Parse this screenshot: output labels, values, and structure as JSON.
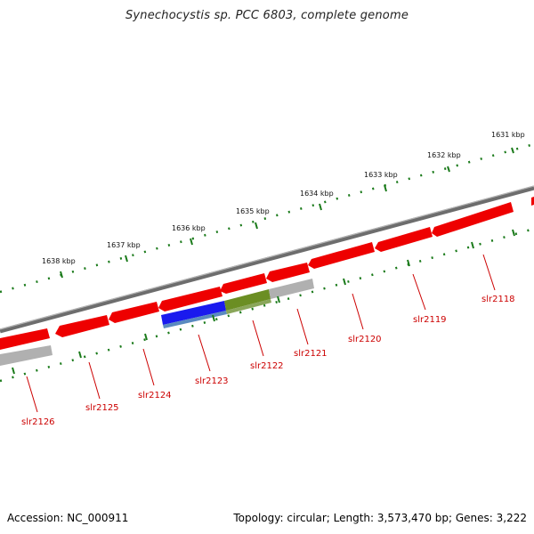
{
  "title": "Synechocystis sp. PCC 6803, complete genome",
  "footer": {
    "accession": "Accession: NC_000911",
    "stats": "Topology: circular; Length: 3,573,470 bp; Genes: 3,222"
  },
  "colors": {
    "gene_forward": "#ee0000",
    "gene_selected_a": "#1a1aee",
    "gene_selected_b": "#6b8e23",
    "gene_other": "#b0b0b0",
    "backbone": "#7a7a7a",
    "ticks": "#1a7a1a",
    "labels": "#cc0000"
  },
  "scale_labels": [
    "1631 kbp",
    "1632 kbp",
    "1633 kbp",
    "1634 kbp",
    "1635 kbp",
    "1636 kbp",
    "1637 kbp",
    "1638 kbp"
  ],
  "genes": [
    {
      "name": "slr2118"
    },
    {
      "name": "slr2119"
    },
    {
      "name": "slr2120"
    },
    {
      "name": "slr2121"
    },
    {
      "name": "slr2122"
    },
    {
      "name": "slr2123"
    },
    {
      "name": "slr2124"
    },
    {
      "name": "slr2125"
    },
    {
      "name": "slr2126"
    }
  ]
}
